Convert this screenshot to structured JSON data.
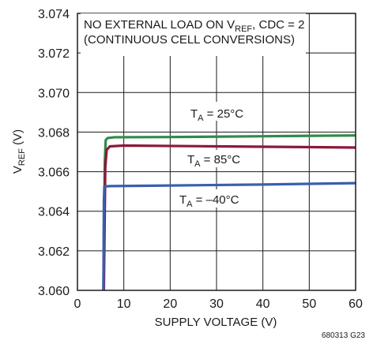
{
  "chart_data": {
    "type": "line",
    "xlabel": "SUPPLY VOLTAGE (V)",
    "ylabel": {
      "main": "V",
      "sub": "REF",
      "tail": " (V)"
    },
    "xlim": [
      0,
      60
    ],
    "ylim": [
      3.06,
      3.074
    ],
    "x_ticks": [
      "0",
      "10",
      "20",
      "30",
      "40",
      "50",
      "60"
    ],
    "y_ticks": [
      "3.060",
      "3.062",
      "3.064",
      "3.066",
      "3.068",
      "3.070",
      "3.072",
      "3.074"
    ],
    "grid": true,
    "annotation": {
      "line1_pre": "NO EXTERNAL LOAD ON V",
      "line1_sub": "REF",
      "line1_post": ", CDC = 2",
      "line2": "(CONTINUOUS CELL CONVERSIONS)"
    },
    "figure_id": "680313 G23",
    "series": [
      {
        "name": {
          "main": "T",
          "sub": "A",
          "tail": " = 25°C"
        },
        "color": "#2e8b4a",
        "points": [
          [
            5.6,
            3.06
          ],
          [
            5.9,
            3.0665
          ],
          [
            6.1,
            3.0676
          ],
          [
            6.5,
            3.0677
          ],
          [
            8,
            3.06774
          ],
          [
            20,
            3.06775
          ],
          [
            40,
            3.06779
          ],
          [
            60,
            3.06783
          ]
        ]
      },
      {
        "name": {
          "main": "T",
          "sub": "A",
          "tail": " = 85°C"
        },
        "color": "#8b1a3a",
        "points": [
          [
            5.7,
            3.06
          ],
          [
            6.0,
            3.0662
          ],
          [
            6.3,
            3.0671
          ],
          [
            7,
            3.06728
          ],
          [
            10,
            3.06732
          ],
          [
            30,
            3.06728
          ],
          [
            60,
            3.06722
          ]
        ]
      },
      {
        "name": {
          "main": "T",
          "sub": "A",
          "tail": " = –40°C"
        },
        "color": "#3a5fae",
        "points": [
          [
            5.6,
            3.06
          ],
          [
            5.7,
            3.0645
          ],
          [
            5.8,
            3.06525
          ],
          [
            7,
            3.06527
          ],
          [
            20,
            3.0653
          ],
          [
            40,
            3.06535
          ],
          [
            60,
            3.06542
          ]
        ]
      }
    ]
  }
}
